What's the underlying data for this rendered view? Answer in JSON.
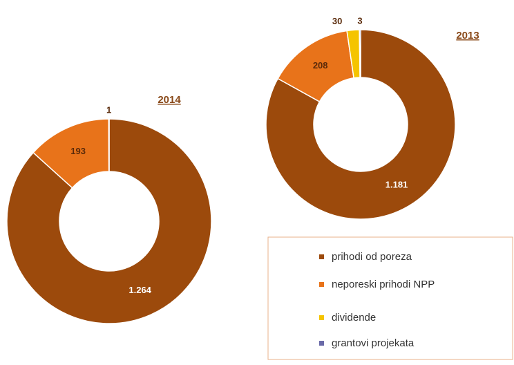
{
  "chart_data": [
    {
      "type": "pie",
      "title": "2014",
      "values": [
        1264,
        193,
        1,
        null
      ],
      "value_labels": [
        "1.264",
        "193",
        "1",
        null
      ]
    },
    {
      "type": "pie",
      "title": "2013",
      "values": [
        1181,
        208,
        30,
        3
      ],
      "value_labels": [
        "1.181",
        "208",
        "30",
        "3"
      ]
    }
  ],
  "legend": {
    "items": [
      {
        "name": "prihodi od poreza",
        "color": "#9c4a0c"
      },
      {
        "name": "neporeski prihodi NPP",
        "color": "#e8731a"
      },
      {
        "name": "dividende",
        "color": "#f5c400"
      },
      {
        "name": "grantovi projekata",
        "color": "#6a6aa8"
      }
    ]
  }
}
